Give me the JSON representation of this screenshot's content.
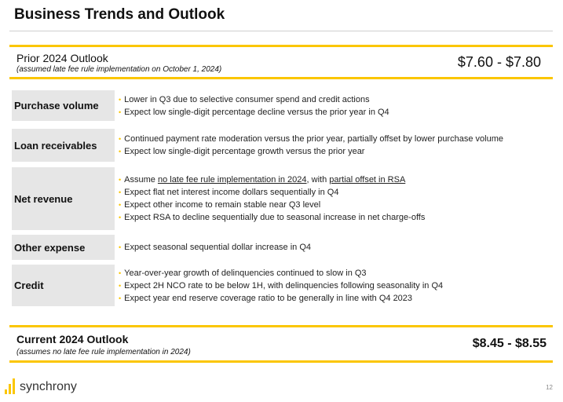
{
  "title": "Business Trends and Outlook",
  "prior": {
    "label": "Prior 2024 Outlook",
    "note": "(assumed late fee rule implementation on October 1, 2024)",
    "value": "$7.60 - $7.80"
  },
  "bullet_glyph": "•",
  "rows": [
    {
      "category": "Purchase volume",
      "items": [
        "Lower in Q3 due to selective consumer spend and credit actions",
        "Expect low single-digit percentage decline versus the prior year in Q4"
      ]
    },
    {
      "category": "Loan receivables",
      "items": [
        "Continued payment rate moderation versus the prior year, partially offset by lower purchase volume",
        "Expect low single-digit percentage growth versus the prior year"
      ]
    },
    {
      "category": "Net revenue",
      "items": [
        {
          "pre": "Assume ",
          "u1": "no late fee rule implementation in 2024",
          "mid": ", with ",
          "u2": "partial offset in RSA"
        },
        "Expect flat net interest income dollars sequentially in Q4",
        "Expect other income to remain stable near Q3 level",
        "Expect RSA to decline sequentially due to seasonal increase in net charge-offs"
      ]
    },
    {
      "category": "Other expense",
      "items": [
        "Expect seasonal sequential dollar increase in Q4"
      ]
    },
    {
      "category": "Credit",
      "items": [
        "Year-over-year growth of delinquencies continued to slow in Q3",
        "Expect 2H NCO rate to be below 1H, with delinquencies following seasonality in Q4",
        "Expect year end reserve coverage ratio to be generally in line with Q4 2023"
      ]
    }
  ],
  "current": {
    "label": "Current 2024 Outlook",
    "note": "(assumes no late fee rule implementation in 2024)",
    "value": "$8.45 - $8.55"
  },
  "brand": "synchrony",
  "page_number": "12",
  "colors": {
    "accent": "#fbc600",
    "category_bg": "#e6e6e6"
  }
}
